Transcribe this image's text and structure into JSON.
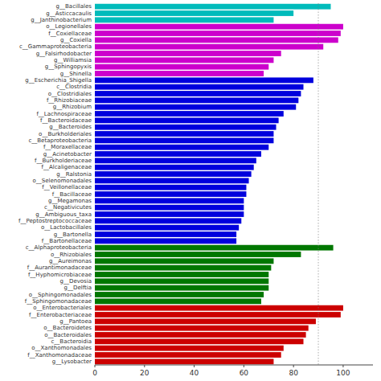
{
  "chart_data": {
    "type": "bar",
    "orientation": "horizontal",
    "categories": [
      "g__Bacillales",
      "g__Asticcacaulis",
      "g__Janthinobacterium",
      "o__Legionellales",
      "f__Coxiellaceae",
      "g__Coxiella",
      "c__Gammaproteobacteria",
      "g__Falsirhodobacter",
      "g__Williamsia",
      "g__Sphingopyxis",
      "g__Shinella",
      "g__Escherichia_Shigella",
      "c__Clostridia",
      "o__Clostridiales",
      "f__Rhizobiaceae",
      "g__Rhizobium",
      "f__Lachnospiraceae",
      "f__Bacteroidaceae",
      "g__Bacteroides",
      "o__Burkholderiales",
      "c__Betaproteobacteria",
      "f__Moraxellaceae",
      "g__Acinetobacter",
      "f__Burkholderiaceae",
      "f__Alcaligenaceae",
      "g__Ralstonia",
      "o__Selenomonadales",
      "f__Veillonellaceae",
      "f__Bacillaceae",
      "g__Megamonas",
      "c__Negativicutes",
      "g__Ambiguous_taxa",
      "f__Peptostreptococcaceae",
      "o__Lactobacillales",
      "g__Bartonella",
      "f__Bartonellaceae",
      "c__Alphaproteobacteria",
      "o__Rhizobiales",
      "g__Aureimonas",
      "f__Aurantimonadaceae",
      "f__Hyphomicrobiaceae",
      "g__Devosia",
      "g__Delftia",
      "o__Sphingomonadales",
      "f__Sphingomonadaceae",
      "o__Enterobacteriales",
      "f__Enterobacteriaceae",
      "g__Pantoea",
      "o__Bacteroidetes",
      "o__Bacteroidales",
      "c__Bacteroidia",
      "o__Xanthomonadales",
      "f__Xanthomonadaceae",
      "g__Lysobacter"
    ],
    "values": [
      95,
      80,
      72,
      100,
      99,
      98,
      92,
      75,
      72,
      70,
      68,
      88,
      84,
      83,
      82,
      81,
      76,
      74,
      73,
      72,
      72,
      70,
      67,
      65,
      64,
      63,
      62,
      61,
      61,
      60,
      60,
      60,
      59,
      58,
      57,
      57,
      96,
      83,
      72,
      71,
      70,
      70,
      70,
      68,
      67,
      100,
      99,
      89,
      86,
      85,
      84,
      76,
      75,
      72
    ],
    "colors": [
      "#00BBBB",
      "#00BBBB",
      "#00BBBB",
      "#CC00CC",
      "#CC00CC",
      "#CC00CC",
      "#CC00CC",
      "#CC00CC",
      "#CC00CC",
      "#CC00CC",
      "#CC00CC",
      "#0000DD",
      "#0000DD",
      "#0000DD",
      "#0000DD",
      "#0000DD",
      "#0000DD",
      "#0000DD",
      "#0000DD",
      "#0000DD",
      "#0000DD",
      "#0000DD",
      "#0000DD",
      "#0000DD",
      "#0000DD",
      "#0000DD",
      "#0000DD",
      "#0000DD",
      "#0000DD",
      "#0000DD",
      "#0000DD",
      "#0000DD",
      "#0000DD",
      "#0000DD",
      "#0000DD",
      "#0000DD",
      "#007700",
      "#007700",
      "#007700",
      "#007700",
      "#007700",
      "#007700",
      "#007700",
      "#007700",
      "#007700",
      "#CC0000",
      "#CC0000",
      "#CC0000",
      "#CC0000",
      "#CC0000",
      "#CC0000",
      "#CC0000",
      "#CC0000",
      "#CC0000"
    ],
    "xlim": [
      0,
      112
    ],
    "xticks": [
      0,
      20,
      40,
      60,
      80,
      100
    ],
    "reference_line_x": 90,
    "grid": false
  }
}
